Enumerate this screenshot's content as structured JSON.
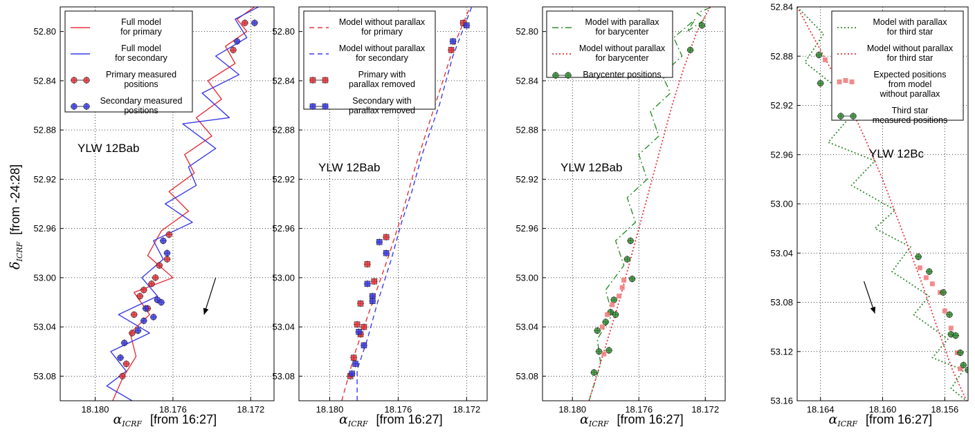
{
  "x_axis": {
    "math_symbol": "α",
    "math_subscript": "ICRF",
    "label": "[from  16:27]"
  },
  "y_axis": {
    "math_symbol": "δ",
    "math_subscript": "ICRF",
    "label": "[from  -24:28]"
  },
  "colors": {
    "primary": "#e8313a",
    "secondary": "#3a3ae8",
    "barycenter": "#2e8b2e",
    "third_star": "#2e8b2e",
    "expected": "#f07878"
  },
  "chart_data": [
    {
      "type": "line",
      "label_text": "YLW 12Bab",
      "xlim": [
        18.1818,
        18.1708
      ],
      "ylim": [
        53.1,
        52.78
      ],
      "xticks": [
        "18.180",
        "18.176",
        "18.172"
      ],
      "yticks": [
        "52.80",
        "52.84",
        "52.88",
        "52.92",
        "52.96",
        "53.00",
        "53.04",
        "53.08"
      ],
      "arrow": {
        "from": [
          18.1738,
          53.0
        ],
        "to": [
          18.1744,
          53.03
        ]
      },
      "legend": [
        {
          "label": [
            "Full model",
            "for primary"
          ],
          "style": "line",
          "color": "primary"
        },
        {
          "label": [
            "Full model",
            "for secondary"
          ],
          "style": "line",
          "color": "secondary"
        },
        {
          "label": [
            "Primary measured",
            "positions"
          ],
          "style": "errpoint",
          "color": "primary"
        },
        {
          "label": [
            "Secondary measured",
            "positions"
          ],
          "style": "errpoint",
          "color": "secondary"
        }
      ],
      "series": [
        {
          "name": "Full model for primary",
          "style": "line",
          "color": "primary",
          "x": [
            18.1791,
            18.1786,
            18.1779,
            18.1782,
            18.1772,
            18.178,
            18.176,
            18.1773,
            18.1766,
            18.1752,
            18.1762,
            18.1749,
            18.1754,
            18.174,
            18.1748,
            18.1735,
            18.1742,
            18.1728,
            18.1733,
            18.1722,
            18.1727,
            18.1718
          ],
          "y": [
            53.1,
            53.082,
            53.064,
            53.045,
            53.03,
            53.012,
            53.0,
            52.982,
            52.962,
            52.946,
            52.93,
            52.915,
            52.9,
            52.885,
            52.87,
            52.855,
            52.84,
            52.826,
            52.812,
            52.8,
            52.79,
            52.78
          ]
        },
        {
          "name": "Full model for secondary",
          "style": "line",
          "color": "secondary",
          "x": [
            18.1781,
            18.1794,
            18.1784,
            18.1792,
            18.1772,
            18.1788,
            18.1768,
            18.1776,
            18.1765,
            18.177,
            18.175,
            18.1764,
            18.1748,
            18.1752,
            18.1738,
            18.1755,
            18.1731,
            18.1745,
            18.1726,
            18.1738,
            18.1722,
            18.1728,
            18.1716
          ],
          "y": [
            53.1,
            53.088,
            53.076,
            53.06,
            53.045,
            53.03,
            53.015,
            53.0,
            52.985,
            52.97,
            52.955,
            52.94,
            52.925,
            52.91,
            52.895,
            52.875,
            52.87,
            52.85,
            52.835,
            52.82,
            52.805,
            52.79,
            52.78
          ]
        },
        {
          "name": "Primary measured positions",
          "style": "errpoint",
          "color": "primary",
          "x": [
            18.1786,
            18.1784,
            18.1781,
            18.178,
            18.1777,
            18.1775,
            18.1773,
            18.1771,
            18.1769,
            18.1767,
            18.1763,
            18.1762,
            18.1729,
            18.1723
          ],
          "y": [
            53.08,
            53.07,
            53.045,
            53.03,
            53.015,
            53.01,
            53.025,
            53.005,
            53.0,
            52.99,
            52.985,
            52.965,
            52.815,
            52.793
          ]
        },
        {
          "name": "Secondary measured positions",
          "style": "errpoint",
          "color": "secondary",
          "x": [
            18.1787,
            18.1785,
            18.1778,
            18.1775,
            18.1774,
            18.177,
            18.1768,
            18.1766,
            18.1765,
            18.1763,
            18.1727,
            18.1718
          ],
          "y": [
            53.065,
            53.053,
            53.043,
            53.035,
            53.025,
            53.032,
            53.018,
            53.02,
            52.97,
            52.98,
            52.808,
            52.793
          ]
        }
      ]
    },
    {
      "type": "line",
      "label_text": "YLW 12Bab",
      "xlim": [
        18.1818,
        18.1708
      ],
      "ylim": [
        53.1,
        52.78
      ],
      "xticks": [
        "18.180",
        "18.176",
        "18.172"
      ],
      "yticks": [
        "52.80",
        "52.84",
        "52.88",
        "52.92",
        "52.96",
        "53.00",
        "53.04",
        "53.08"
      ],
      "legend": [
        {
          "label": [
            "Model without parallax",
            "for primary"
          ],
          "style": "dash",
          "color": "primary"
        },
        {
          "label": [
            "Model without parallax",
            "for secondary"
          ],
          "style": "dash",
          "color": "secondary"
        },
        {
          "label": [
            "Primary with",
            "parallax removed"
          ],
          "style": "errsquare",
          "color": "primary"
        },
        {
          "label": [
            "Secondary with",
            "parallax removed"
          ],
          "style": "errsquare",
          "color": "secondary"
        }
      ],
      "series": [
        {
          "name": "Model without parallax for primary",
          "style": "dash",
          "color": "primary",
          "x": [
            18.1793,
            18.1785,
            18.1775,
            18.1765,
            18.1757,
            18.175,
            18.1742,
            18.1735,
            18.1727,
            18.1718
          ],
          "y": [
            53.1,
            53.06,
            53.02,
            52.98,
            52.945,
            52.91,
            52.875,
            52.845,
            52.81,
            52.78
          ]
        },
        {
          "name": "Model without parallax for secondary",
          "style": "dash",
          "color": "secondary",
          "x": [
            18.1784,
            18.1784,
            18.1778,
            18.1772,
            18.1764,
            18.1758,
            18.1752,
            18.1746,
            18.1736,
            18.1728,
            18.1717
          ],
          "y": [
            53.1,
            53.075,
            53.05,
            53.02,
            52.985,
            52.955,
            52.93,
            52.9,
            52.86,
            52.82,
            52.78
          ]
        },
        {
          "name": "Primary with parallax removed",
          "style": "errsquare",
          "color": "primary",
          "x": [
            18.1788,
            18.1786,
            18.1784,
            18.1782,
            18.1782,
            18.178,
            18.1778,
            18.1774,
            18.1767,
            18.1729,
            18.1722
          ],
          "y": [
            53.08,
            53.065,
            53.038,
            53.021,
            53.046,
            53.04,
            52.989,
            53.003,
            52.967,
            52.815,
            52.793
          ]
        },
        {
          "name": "Secondary with parallax removed",
          "style": "errsquare",
          "color": "secondary",
          "x": [
            18.1787,
            18.1785,
            18.1783,
            18.178,
            18.1778,
            18.1775,
            18.1775,
            18.1771,
            18.1767,
            18.1728,
            18.172
          ],
          "y": [
            53.078,
            53.07,
            53.044,
            53.055,
            53.005,
            53.015,
            53.019,
            52.971,
            52.98,
            52.808,
            52.795
          ]
        }
      ]
    },
    {
      "type": "line",
      "label_text": "YLW 12Bab",
      "xlim": [
        18.1818,
        18.1708
      ],
      "ylim": [
        53.1,
        52.78
      ],
      "xticks": [
        "18.180",
        "18.176",
        "18.172"
      ],
      "yticks": [
        "52.80",
        "52.84",
        "52.88",
        "52.92",
        "52.96",
        "53.00",
        "53.04",
        "53.08"
      ],
      "legend": [
        {
          "label": [
            "Model with parallax",
            "for barycenter"
          ],
          "style": "dashdot",
          "color": "barycenter"
        },
        {
          "label": [
            "Model without parallax",
            "for barycenter"
          ],
          "style": "dotted",
          "color": "primary"
        },
        {
          "label": [
            "Barycenter positions"
          ],
          "style": "errpoint",
          "color": "barycenter"
        }
      ],
      "series": [
        {
          "name": "Model with parallax for barycenter",
          "style": "dashdot",
          "color": "barycenter",
          "x": [
            18.179,
            18.1783,
            18.1785,
            18.1776,
            18.178,
            18.1769,
            18.1774,
            18.1762,
            18.1767,
            18.1755,
            18.176,
            18.1748,
            18.1753,
            18.1741,
            18.1746,
            18.1734,
            18.1739,
            18.1726,
            18.1731,
            18.172,
            18.1725,
            18.1716
          ],
          "y": [
            53.1,
            53.07,
            53.05,
            53.03,
            53.01,
            52.99,
            52.97,
            52.955,
            52.935,
            52.92,
            52.9,
            52.885,
            52.865,
            52.85,
            52.835,
            52.82,
            52.805,
            52.79,
            52.8,
            52.79,
            52.785,
            52.78
          ]
        },
        {
          "name": "Model without parallax for barycenter",
          "style": "dotted",
          "color": "primary",
          "x": [
            18.179,
            18.1781,
            18.1772,
            18.1764,
            18.1756,
            18.1748,
            18.174,
            18.1733,
            18.1725,
            18.1717
          ],
          "y": [
            53.1,
            53.06,
            53.02,
            52.98,
            52.94,
            52.9,
            52.86,
            52.83,
            52.8,
            52.78
          ]
        },
        {
          "name": "Barycenter positions",
          "style": "errpoint",
          "color": "barycenter",
          "x": [
            18.1787,
            18.1784,
            18.1785,
            18.178,
            18.1778,
            18.1777,
            18.1775,
            18.1774,
            18.1767,
            18.1765,
            18.1764,
            18.1729,
            18.1722
          ],
          "y": [
            53.077,
            53.06,
            53.043,
            53.036,
            53.059,
            53.028,
            53.018,
            53.03,
            52.985,
            52.97,
            53.001,
            52.815,
            52.795
          ]
        },
        {
          "name": "Expected positions",
          "style": "square",
          "color": "expected",
          "x": [
            18.1781,
            18.1782,
            18.1779,
            18.1776,
            18.1772,
            18.177,
            18.1769
          ],
          "y": [
            53.062,
            53.04,
            53.03,
            53.022,
            53.015,
            53.008,
            53.002
          ]
        }
      ]
    },
    {
      "type": "line",
      "label_text": "YLW 12Bc",
      "xlim": [
        18.1655,
        18.1545
      ],
      "ylim": [
        53.16,
        52.84
      ],
      "xticks": [
        "18.164",
        "18.160",
        "18.156"
      ],
      "yticks": [
        "52.84",
        "52.88",
        "52.92",
        "52.96",
        "53.00",
        "53.04",
        "53.08",
        "53.12",
        "53.16"
      ],
      "arrow": {
        "from": [
          18.1612,
          53.063
        ],
        "to": [
          18.1605,
          53.089
        ]
      },
      "legend": [
        {
          "label": [
            "Model with parallax",
            "for third star"
          ],
          "style": "dotted",
          "color": "third_star"
        },
        {
          "label": [
            "Model without parallax",
            "for third star"
          ],
          "style": "dotted",
          "color": "primary"
        },
        {
          "label": [
            "Expected positions",
            "from model",
            "without parallax"
          ],
          "style": "squares",
          "color": "expected"
        },
        {
          "label": [
            "Third star",
            "measured positions"
          ],
          "style": "errpoint",
          "color": "third_star"
        }
      ],
      "series": [
        {
          "name": "Model with parallax for third star",
          "style": "dotted",
          "color": "third_star",
          "x": [
            18.1655,
            18.1638,
            18.165,
            18.163,
            18.1618,
            18.1635,
            18.1605,
            18.162,
            18.1592,
            18.1605,
            18.1582,
            18.1594,
            18.157,
            18.158,
            18.1558,
            18.1568,
            18.1548,
            18.1556,
            18.1546
          ],
          "y": [
            52.84,
            52.862,
            52.885,
            52.905,
            52.925,
            52.95,
            52.965,
            52.985,
            53.005,
            53.02,
            53.035,
            53.055,
            53.075,
            53.09,
            53.11,
            53.125,
            53.135,
            53.15,
            53.16
          ]
        },
        {
          "name": "Model without parallax for third star",
          "style": "dotted",
          "color": "primary",
          "x": [
            18.1655,
            18.164,
            18.1625,
            18.1612,
            18.16,
            18.1588,
            18.1576,
            18.1565,
            18.1555,
            18.1546
          ],
          "y": [
            52.84,
            52.875,
            52.91,
            52.945,
            52.98,
            53.02,
            53.06,
            53.1,
            53.135,
            53.16
          ]
        },
        {
          "name": "Expected positions from model without parallax",
          "style": "square",
          "color": "expected",
          "x": [
            18.1637,
            18.163,
            18.1621,
            18.1576,
            18.1572,
            18.1568,
            18.1563,
            18.156,
            18.1556,
            18.1552,
            18.155
          ],
          "y": [
            52.883,
            52.899,
            52.912,
            53.052,
            53.06,
            53.065,
            53.072,
            53.087,
            53.101,
            53.121,
            53.134
          ]
        },
        {
          "name": "Third star measured positions",
          "style": "errpoint",
          "color": "third_star",
          "x": [
            18.1641,
            18.164,
            18.1577,
            18.157,
            18.1561,
            18.1557,
            18.1556,
            18.1553,
            18.155,
            18.1548,
            18.1545
          ],
          "y": [
            52.879,
            52.902,
            53.043,
            53.055,
            53.072,
            53.09,
            53.106,
            53.107,
            53.121,
            53.131,
            53.135
          ]
        }
      ]
    }
  ]
}
